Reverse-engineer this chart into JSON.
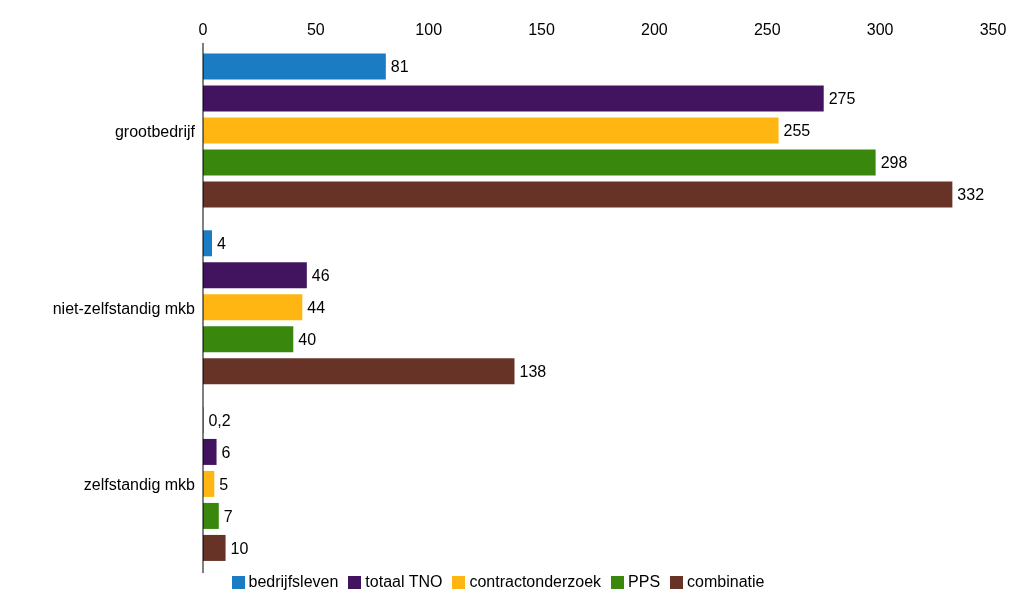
{
  "chart_data": {
    "type": "bar",
    "orientation": "horizontal",
    "categories": [
      "grootbedrijf",
      "niet-zelfstandig mkb",
      "zelfstandig mkb"
    ],
    "series": [
      {
        "name": "bedrijfsleven",
        "color": "#1a7dc4",
        "values": [
          81,
          4,
          0.2
        ],
        "value_labels": [
          "81",
          "4",
          "0,2"
        ]
      },
      {
        "name": "totaal TNO",
        "color": "#42145f",
        "values": [
          275,
          46,
          6
        ],
        "value_labels": [
          "275",
          "46",
          "6"
        ]
      },
      {
        "name": "contractonderzoek",
        "color": "#ffb612",
        "values": [
          255,
          44,
          5
        ],
        "value_labels": [
          "255",
          "44",
          "5"
        ]
      },
      {
        "name": "PPS",
        "color": "#39870c",
        "values": [
          298,
          40,
          7
        ],
        "value_labels": [
          "298",
          "40",
          "7"
        ]
      },
      {
        "name": "combinatie",
        "color": "#673327",
        "values": [
          332,
          138,
          10
        ],
        "value_labels": [
          "332",
          "138",
          "10"
        ]
      }
    ],
    "xlim": [
      0,
      350
    ],
    "xticks": [
      0,
      50,
      100,
      150,
      200,
      250,
      300,
      350
    ],
    "grid": false,
    "legend": "bottom"
  }
}
